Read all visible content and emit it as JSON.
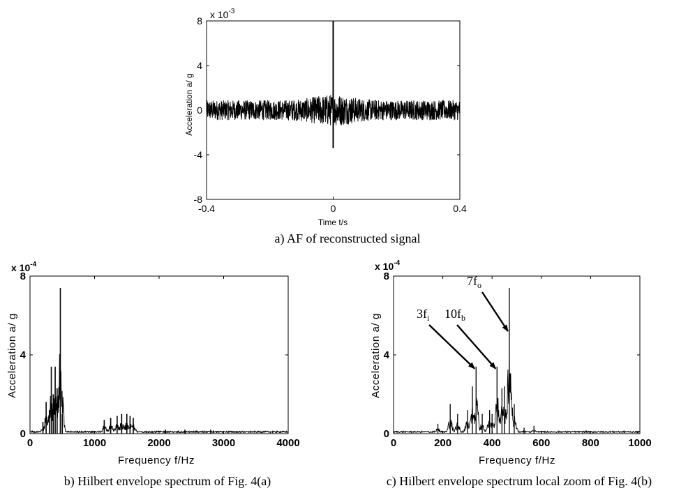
{
  "chart_data": [
    {
      "type": "line",
      "caption": "a) AF of reconstructed signal",
      "xlabel": "Time t/s",
      "ylabel": "Acceleration a/ g",
      "exponent_label": "x 10",
      "exponent_power": "-3",
      "xlim": [
        -0.4,
        0.4
      ],
      "ylim": [
        -8,
        8
      ],
      "x_ticks": [
        "-0.4",
        "0",
        "0.4"
      ],
      "y_ticks": [
        "8",
        "4",
        "0",
        "-4",
        "-8"
      ],
      "x_tick_values": [
        -0.4,
        0,
        0.4
      ],
      "y_tick_values": [
        8,
        4,
        0,
        -4,
        -8
      ],
      "series": [
        {
          "noise_band": [
            -0.9,
            0.9
          ],
          "points": [
            [
              -0.4,
              0.1
            ],
            [
              -0.2,
              0.2
            ],
            [
              -0.05,
              0.6
            ],
            [
              0,
              8.0
            ],
            [
              0,
              -3.4
            ],
            [
              0.05,
              0.5
            ],
            [
              0.2,
              0.2
            ],
            [
              0.4,
              0.1
            ]
          ]
        }
      ]
    },
    {
      "type": "line",
      "caption": "b) Hilbert envelope spectrum of Fig. 4(a)",
      "xlabel": "Frequency f/Hz",
      "ylabel": "Acceleration a/ g",
      "exponent_label": "x 10",
      "exponent_power": "-4",
      "xlim": [
        0,
        4000
      ],
      "ylim": [
        0,
        8
      ],
      "x_ticks": [
        "0",
        "1000",
        "2000",
        "3000",
        "4000"
      ],
      "y_ticks": [
        "8",
        "4",
        "0"
      ],
      "x_tick_values": [
        0,
        1000,
        2000,
        3000,
        4000
      ],
      "y_tick_values": [
        8,
        4,
        0
      ],
      "series": [
        {
          "peaks": [
            [
              200,
              0.6
            ],
            [
              250,
              1.6
            ],
            [
              300,
              1.2
            ],
            [
              330,
              3.4
            ],
            [
              360,
              2.0
            ],
            [
              390,
              3.4
            ],
            [
              420,
              2.3
            ],
            [
              470,
              7.4
            ],
            [
              500,
              1.0
            ],
            [
              1150,
              0.7
            ],
            [
              1250,
              0.8
            ],
            [
              1350,
              0.9
            ],
            [
              1420,
              1.0
            ],
            [
              1500,
              1.0
            ],
            [
              1550,
              0.9
            ],
            [
              1600,
              0.8
            ],
            [
              2100,
              0.2
            ],
            [
              2400,
              0.2
            ],
            [
              2800,
              0.2
            ]
          ]
        }
      ]
    },
    {
      "type": "line",
      "caption": "c) Hilbert envelope spectrum local zoom of Fig. 4(b)",
      "xlabel": "Frequency f/Hz",
      "ylabel": "Acceleration a/ g",
      "exponent_label": "x 10",
      "exponent_power": "-4",
      "xlim": [
        0,
        1000
      ],
      "ylim": [
        0,
        8
      ],
      "x_ticks": [
        "0",
        "200",
        "400",
        "600",
        "800",
        "1000"
      ],
      "y_ticks": [
        "8",
        "4",
        "0"
      ],
      "x_tick_values": [
        0,
        200,
        400,
        600,
        800,
        1000
      ],
      "y_tick_values": [
        8,
        4,
        0
      ],
      "series": [
        {
          "peaks": [
            [
              180,
              0.5
            ],
            [
              230,
              1.5
            ],
            [
              260,
              1.0
            ],
            [
              300,
              1.2
            ],
            [
              320,
              2.4
            ],
            [
              335,
              3.4
            ],
            [
              360,
              1.0
            ],
            [
              390,
              1.2
            ],
            [
              400,
              1.0
            ],
            [
              420,
              3.4
            ],
            [
              440,
              2.3
            ],
            [
              450,
              2.4
            ],
            [
              470,
              7.4
            ],
            [
              490,
              1.5
            ],
            [
              530,
              0.3
            ],
            [
              570,
              0.4
            ]
          ]
        }
      ],
      "annotations": [
        {
          "base": "3f",
          "sub": "i",
          "target": [
            335,
            3.3
          ]
        },
        {
          "base": "10f",
          "sub": "b",
          "target": [
            420,
            3.3
          ]
        },
        {
          "base": "7f",
          "sub": "o",
          "target": [
            470,
            5.2
          ]
        }
      ]
    }
  ]
}
